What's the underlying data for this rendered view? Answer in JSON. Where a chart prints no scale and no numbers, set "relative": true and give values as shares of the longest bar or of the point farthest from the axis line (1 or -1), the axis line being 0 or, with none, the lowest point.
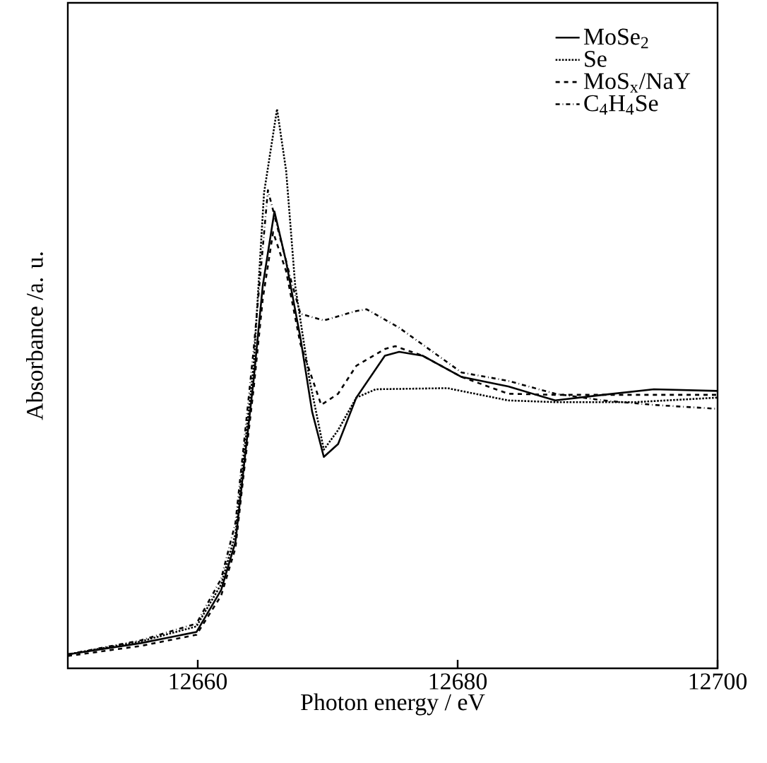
{
  "chart_data": {
    "type": "line",
    "xlabel": "Photon energy / eV",
    "ylabel": "Absorbance /a. u.",
    "relative": true,
    "xlim": [
      12650,
      12700
    ],
    "xticks": [
      12660,
      12680,
      12700
    ],
    "legend": "top right",
    "marker": "none",
    "series": [
      {
        "name": "MoSe$_{2}$",
        "color": "#000000",
        "line_style": "solid",
        "x": [
          12650,
          12655.6,
          12659.9,
          12661.8,
          12662.9,
          12663.5,
          12664.3,
          12665.0,
          12665.9,
          12666.8,
          12667.9,
          12668.8,
          12669.7,
          12670.8,
          12672.2,
          12674.4,
          12675.5,
          12677.3,
          12680.3,
          12683.9,
          12687.5,
          12691.2,
          12695.1,
          12700
        ],
        "values": [
          0.025,
          0.045,
          0.065,
          0.14,
          0.226,
          0.351,
          0.516,
          0.684,
          0.817,
          0.727,
          0.591,
          0.459,
          0.378,
          0.401,
          0.484,
          0.559,
          0.566,
          0.559,
          0.521,
          0.504,
          0.479,
          0.489,
          0.499,
          0.496
        ]
      },
      {
        "name": "Se",
        "color": "#000000",
        "line_style": "dotted",
        "x": [
          12650,
          12655.6,
          12659.9,
          12661.8,
          12662.9,
          12663.5,
          12664.3,
          12665.1,
          12666.1,
          12666.8,
          12667.5,
          12668.6,
          12669.7,
          12670.8,
          12672.2,
          12673.7,
          12679.2,
          12683.9,
          12687.5,
          12693.7,
          12700
        ],
        "values": [
          0.025,
          0.048,
          0.075,
          0.15,
          0.24,
          0.37,
          0.54,
          0.85,
          1.0,
          0.89,
          0.684,
          0.516,
          0.391,
          0.426,
          0.484,
          0.499,
          0.501,
          0.479,
          0.476,
          0.476,
          0.484
        ]
      },
      {
        "name": "MoS$_{x}$/NaY",
        "color": "#000000",
        "line_style": "dashed",
        "x": [
          12650,
          12655.6,
          12659.9,
          12661.8,
          12662.9,
          12663.5,
          12664.3,
          12665.0,
          12665.8,
          12666.8,
          12667.9,
          12669.5,
          12670.8,
          12672.2,
          12674.4,
          12675.2,
          12677.3,
          12680.3,
          12683.9,
          12687.5,
          12691.2,
          12695.1,
          12700
        ],
        "values": [
          0.022,
          0.04,
          0.06,
          0.13,
          0.215,
          0.34,
          0.5,
          0.66,
          0.78,
          0.71,
          0.58,
          0.471,
          0.491,
          0.541,
          0.571,
          0.576,
          0.559,
          0.521,
          0.491,
          0.489,
          0.489,
          0.489,
          0.489
        ]
      },
      {
        "name": "C$_{4}$H$_{4}$Se",
        "color": "#000000",
        "line_style": "dashdot",
        "x": [
          12650,
          12655.6,
          12659.9,
          12661.8,
          12662.9,
          12663.5,
          12664.3,
          12665.4,
          12667.2,
          12667.9,
          12669.7,
          12672.2,
          12673.0,
          12675.5,
          12680.3,
          12683.9,
          12687.5,
          12691.2,
          12695.1,
          12700
        ],
        "values": [
          0.025,
          0.05,
          0.08,
          0.16,
          0.26,
          0.39,
          0.57,
          0.855,
          0.692,
          0.634,
          0.622,
          0.639,
          0.642,
          0.609,
          0.529,
          0.514,
          0.491,
          0.479,
          0.471,
          0.464
        ]
      }
    ]
  }
}
